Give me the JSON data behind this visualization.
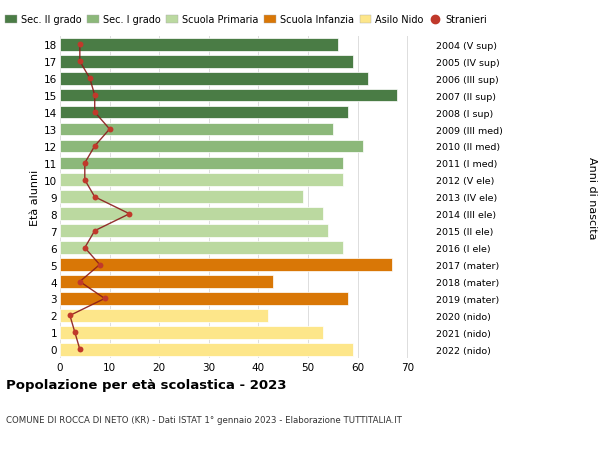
{
  "ages": [
    0,
    1,
    2,
    3,
    4,
    5,
    6,
    7,
    8,
    9,
    10,
    11,
    12,
    13,
    14,
    15,
    16,
    17,
    18
  ],
  "right_labels": [
    "2022 (nido)",
    "2021 (nido)",
    "2020 (nido)",
    "2019 (mater)",
    "2018 (mater)",
    "2017 (mater)",
    "2016 (I ele)",
    "2015 (II ele)",
    "2014 (III ele)",
    "2013 (IV ele)",
    "2012 (V ele)",
    "2011 (I med)",
    "2010 (II med)",
    "2009 (III med)",
    "2008 (I sup)",
    "2007 (II sup)",
    "2006 (III sup)",
    "2005 (IV sup)",
    "2004 (V sup)"
  ],
  "bar_values": [
    59,
    53,
    42,
    58,
    43,
    67,
    57,
    54,
    53,
    49,
    57,
    57,
    61,
    55,
    58,
    68,
    62,
    59,
    56
  ],
  "bar_colors": [
    "#fde68a",
    "#fde68a",
    "#fde68a",
    "#d97706",
    "#d97706",
    "#d97706",
    "#bbd9a0",
    "#bbd9a0",
    "#bbd9a0",
    "#bbd9a0",
    "#bbd9a0",
    "#8cb87a",
    "#8cb87a",
    "#8cb87a",
    "#4a7c45",
    "#4a7c45",
    "#4a7c45",
    "#4a7c45",
    "#4a7c45"
  ],
  "stranieri_values": [
    4,
    3,
    2,
    9,
    4,
    8,
    5,
    7,
    14,
    7,
    5,
    5,
    7,
    10,
    7,
    7,
    6,
    4,
    4
  ],
  "legend_labels": [
    "Sec. II grado",
    "Sec. I grado",
    "Scuola Primaria",
    "Scuola Infanzia",
    "Asilo Nido",
    "Stranieri"
  ],
  "legend_colors": [
    "#4a7c45",
    "#8cb87a",
    "#bbd9a0",
    "#d97706",
    "#fde68a",
    "#c0392b"
  ],
  "title": "Popolazione per età scolastica - 2023",
  "subtitle": "COMUNE DI ROCCA DI NETO (KR) - Dati ISTAT 1° gennaio 2023 - Elaborazione TUTTITALIA.IT",
  "xlabel_left": "Età alunni",
  "xlabel_right": "Anni di nascita",
  "xlim": [
    0,
    75
  ],
  "xticks": [
    0,
    10,
    20,
    30,
    40,
    50,
    60,
    70
  ],
  "bg_color": "#ffffff",
  "grid_color": "#dddddd"
}
